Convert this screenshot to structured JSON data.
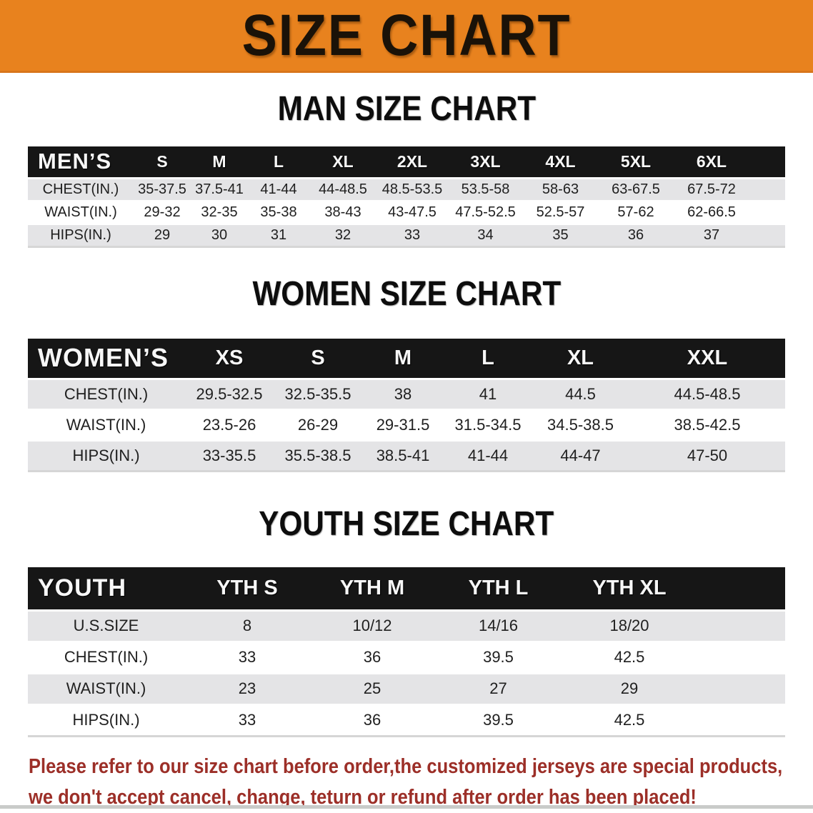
{
  "banner": {
    "title": "SIZE CHART",
    "bg_color": "#e8821e",
    "text_color": "#1a1208"
  },
  "charts": [
    {
      "heading": "MAN SIZE CHART",
      "header_label": "MEN’S",
      "columns": [
        "S",
        "M",
        "L",
        "XL",
        "2XL",
        "3XL",
        "4XL",
        "5XL",
        "6XL"
      ],
      "rows": [
        {
          "label": "CHEST(IN.)",
          "values": [
            "35-37.5",
            "37.5-41",
            "41-44",
            "44-48.5",
            "48.5-53.5",
            "53.5-58",
            "58-63",
            "63-67.5",
            "67.5-72"
          ]
        },
        {
          "label": "WAIST(IN.)",
          "values": [
            "29-32",
            "32-35",
            "35-38",
            "38-43",
            "43-47.5",
            "47.5-52.5",
            "52.5-57",
            "57-62",
            "62-66.5"
          ]
        },
        {
          "label": "HIPS(IN.)",
          "values": [
            "29",
            "30",
            "31",
            "32",
            "33",
            "34",
            "35",
            "36",
            "37"
          ]
        }
      ]
    },
    {
      "heading": "WOMEN SIZE CHART",
      "header_label": "WOMEN’S",
      "columns": [
        "XS",
        "S",
        "M",
        "L",
        "XL",
        "XXL"
      ],
      "rows": [
        {
          "label": "CHEST(IN.)",
          "values": [
            "29.5-32.5",
            "32.5-35.5",
            "38",
            "41",
            "44.5",
            "44.5-48.5"
          ]
        },
        {
          "label": "WAIST(IN.)",
          "values": [
            "23.5-26",
            "26-29",
            "29-31.5",
            "31.5-34.5",
            "34.5-38.5",
            "38.5-42.5"
          ]
        },
        {
          "label": "HIPS(IN.)",
          "values": [
            "33-35.5",
            "35.5-38.5",
            "38.5-41",
            "41-44",
            "44-47",
            "47-50"
          ]
        }
      ]
    },
    {
      "heading": "YOUTH SIZE CHART",
      "header_label": "YOUTH",
      "columns": [
        "YTH S",
        "YTH M",
        "YTH L",
        "YTH XL"
      ],
      "rows": [
        {
          "label": "U.S.SIZE",
          "values": [
            "8",
            "10/12",
            "14/16",
            "18/20"
          ]
        },
        {
          "label": "CHEST(IN.)",
          "values": [
            "33",
            "36",
            "39.5",
            "42.5"
          ]
        },
        {
          "label": "WAIST(IN.)",
          "values": [
            "23",
            "25",
            "27",
            "29"
          ]
        },
        {
          "label": "HIPS(IN.)",
          "values": [
            "33",
            "36",
            "39.5",
            "42.5"
          ]
        }
      ]
    }
  ],
  "disclaimer": {
    "line1": "Please refer to our size chart before order,the customized jerseys are special products,",
    "line2": "we don't accept cancel, change, teturn or refund after order has been placed!",
    "color": "#9c2f28"
  }
}
